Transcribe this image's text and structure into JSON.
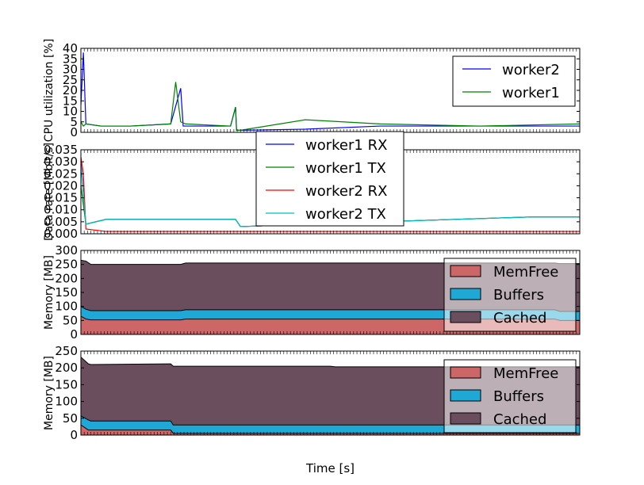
{
  "chart_data": [
    {
      "type": "line",
      "ylabel": "CPU utilization [%]",
      "ylim": [
        0,
        40
      ],
      "yticks": [
        "0",
        "5",
        "10",
        "15",
        "20",
        "25",
        "30",
        "35",
        "40"
      ],
      "legend_position": "top-right",
      "series": [
        {
          "name": "worker2",
          "color": "#0000ff",
          "x": [
            0,
            0.005,
            0.01,
            0.04,
            0.1,
            0.18,
            0.2,
            0.205,
            0.21,
            0.3,
            0.31,
            0.312,
            0.32,
            0.45,
            0.6,
            0.8,
            1.0
          ],
          "values": [
            13,
            38,
            4,
            3,
            3,
            4,
            21,
            3,
            3,
            3,
            12,
            1,
            1,
            1.5,
            3,
            3,
            3
          ]
        },
        {
          "name": "worker1",
          "color": "#008000",
          "x": [
            0,
            0.005,
            0.01,
            0.04,
            0.1,
            0.18,
            0.19,
            0.2,
            0.21,
            0.3,
            0.31,
            0.312,
            0.32,
            0.45,
            0.6,
            0.8,
            1.0
          ],
          "values": [
            5,
            3,
            4,
            3,
            3,
            4,
            24,
            5,
            4,
            3,
            12,
            1,
            1,
            6,
            4,
            3,
            4
          ]
        }
      ]
    },
    {
      "type": "line",
      "ylabel": "Data rate [Mbit/s]",
      "ylim": [
        0,
        0.035
      ],
      "yticks": [
        "0.000",
        "0.005",
        "0.010",
        "0.015",
        "0.020",
        "0.025",
        "0.030",
        "0.035"
      ],
      "legend_position": "upper-center",
      "series": [
        {
          "name": "worker1 RX",
          "color": "#0000ff",
          "x": [
            0,
            0.01,
            0.05,
            0.31,
            0.32,
            0.6,
            0.9,
            1.0
          ],
          "values": [
            0.03,
            0.004,
            0.006,
            0.006,
            0.003,
            0.005,
            0.007,
            0.007
          ]
        },
        {
          "name": "worker1 TX",
          "color": "#008000",
          "x": [
            0,
            0.01,
            0.05,
            0.31,
            0.32,
            0.6,
            0.9,
            1.0
          ],
          "values": [
            0.02,
            0.004,
            0.006,
            0.006,
            0.003,
            0.005,
            0.007,
            0.007
          ]
        },
        {
          "name": "worker2 RX",
          "color": "#ff0000",
          "x": [
            0,
            0.005,
            0.01,
            0.05,
            0.31,
            0.32,
            1.0
          ],
          "values": [
            0.032,
            0.025,
            0.002,
            0.001,
            0.001,
            0.001,
            0.001
          ]
        },
        {
          "name": "worker2 TX",
          "color": "#00bfbf",
          "x": [
            0,
            0.01,
            0.05,
            0.31,
            0.32,
            0.6,
            0.9,
            1.0
          ],
          "values": [
            0.029,
            0.004,
            0.006,
            0.006,
            0.003,
            0.005,
            0.007,
            0.007
          ]
        }
      ]
    },
    {
      "type": "area",
      "ylabel": "Memory [MB]",
      "ylim": [
        0,
        300
      ],
      "yticks": [
        "0",
        "50",
        "100",
        "150",
        "200",
        "250",
        "300"
      ],
      "legend_position": "bottom-right",
      "x": [
        0,
        0.01,
        0.02,
        0.2,
        0.21,
        0.95,
        0.96,
        1.0
      ],
      "series": [
        {
          "name": "MemFree",
          "color": "#cd6666",
          "values": [
            65,
            55,
            52,
            52,
            55,
            55,
            50,
            50
          ]
        },
        {
          "name": "Buffers",
          "color": "#1fa8d5",
          "values": [
            100,
            90,
            85,
            85,
            88,
            88,
            82,
            82
          ]
        },
        {
          "name": "Cached",
          "color": "#6b4e5e",
          "values": [
            265,
            262,
            250,
            250,
            255,
            255,
            253,
            253
          ]
        }
      ]
    },
    {
      "type": "area",
      "ylabel": "Memory [MB]",
      "ylim": [
        0,
        250
      ],
      "yticks": [
        "0",
        "50",
        "100",
        "150",
        "200",
        "250"
      ],
      "legend_position": "bottom-right",
      "xlabel": "Time [s]",
      "x": [
        0,
        0.015,
        0.02,
        0.18,
        0.185,
        0.5,
        0.51,
        1.0
      ],
      "series": [
        {
          "name": "MemFree",
          "color": "#cd6666",
          "values": [
            30,
            15,
            15,
            15,
            5,
            5,
            5,
            5
          ]
        },
        {
          "name": "Buffers",
          "color": "#1fa8d5",
          "values": [
            57,
            45,
            42,
            42,
            30,
            30,
            30,
            30
          ]
        },
        {
          "name": "Cached",
          "color": "#6b4e5e",
          "values": [
            232,
            212,
            210,
            212,
            205,
            205,
            203,
            203
          ]
        }
      ]
    }
  ]
}
